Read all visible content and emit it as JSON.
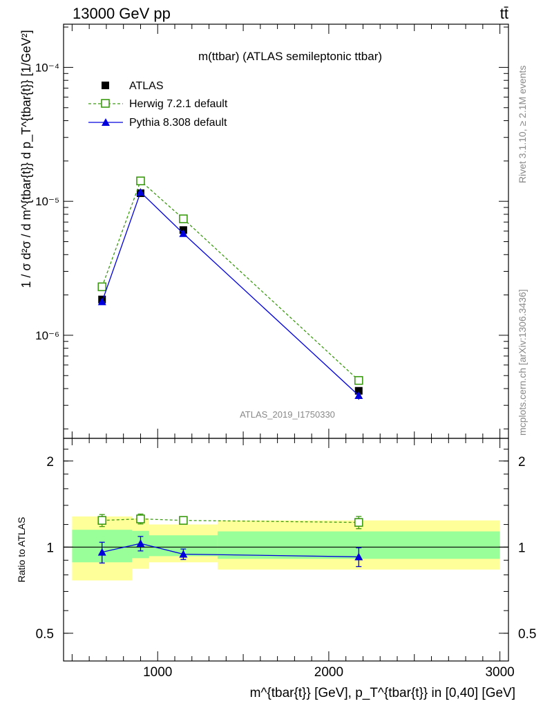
{
  "header": {
    "left": "13000 GeV pp",
    "right": "tt̄"
  },
  "side_labels": {
    "rivet": "Rivet 3.1.10, ≥ 2.1M events",
    "mcplots": "mcplots.cern.ch [arXiv:1306.3436]"
  },
  "colors": {
    "atlas": "#000000",
    "herwig": "#3a9a10",
    "pythia": "#0000dd",
    "band_inner": "#99ff99",
    "band_outer": "#ffff99"
  },
  "chart_data": [
    {
      "type": "scatter",
      "title": "m(ttbar) (ATLAS semileptonic ttbar)",
      "watermark": "ATLAS_2019_I1750330",
      "ylabel": "1 / σ d²σ / d m^{tbar{t}} d p_T^{tbar{t}} [1/GeV²]",
      "yscale": "log",
      "xlim": [
        450,
        3050
      ],
      "ylim": [
        1.7e-07,
        0.00021
      ],
      "y_ticks": [
        {
          "value": 1e-06,
          "label": "10⁻⁶"
        },
        {
          "value": 1e-05,
          "label": "10⁻⁵"
        },
        {
          "value": 0.0001,
          "label": "10⁻⁴"
        }
      ],
      "legend_position": "top-left",
      "series": [
        {
          "name": "ATLAS",
          "marker": "filled-square",
          "x": [
            675,
            900,
            1150,
            2175
          ],
          "y": [
            1.85e-06,
            1.15e-05,
            6.1e-06,
            3.85e-07
          ]
        },
        {
          "name": "Herwig 7.2.1 default",
          "marker": "open-square",
          "line": "dashed",
          "x": [
            675,
            900,
            1150,
            2175
          ],
          "y": [
            2.3e-06,
            1.42e-05,
            7.4e-06,
            4.6e-07
          ]
        },
        {
          "name": "Pythia 8.308 default",
          "marker": "filled-triangle",
          "line": "solid",
          "x": [
            675,
            900,
            1150,
            2175
          ],
          "y": [
            1.78e-06,
            1.17e-05,
            5.75e-06,
            3.55e-07
          ],
          "yerr": [
            9e-08,
            4e-07,
            2.2e-07,
            2.5e-08
          ]
        }
      ]
    },
    {
      "type": "scatter",
      "ylabel": "Ratio to ATLAS",
      "xlabel": "m^{tbar{t}} [GeV], p_T^{tbar{t}} in [0,40] [GeV]",
      "xlim": [
        450,
        3050
      ],
      "ylim": [
        0.4,
        2.4
      ],
      "x_ticks": [
        {
          "value": 1000,
          "label": "1000"
        },
        {
          "value": 2000,
          "label": "2000"
        },
        {
          "value": 3000,
          "label": "3000"
        }
      ],
      "y_ticks": [
        {
          "value": 0.5,
          "label": "0.5"
        },
        {
          "value": 1,
          "label": "1"
        },
        {
          "value": 2,
          "label": "2"
        }
      ],
      "reference": 1,
      "bands": [
        {
          "xlo": 500,
          "xhi": 850,
          "inner": [
            0.885,
            1.15
          ],
          "outer": [
            0.765,
            1.28
          ]
        },
        {
          "xlo": 850,
          "xhi": 950,
          "inner": [
            0.915,
            1.14
          ],
          "outer": [
            0.84,
            1.26
          ]
        },
        {
          "xlo": 950,
          "xhi": 1350,
          "inner": [
            0.93,
            1.1
          ],
          "outer": [
            0.885,
            1.2
          ]
        },
        {
          "xlo": 1350,
          "xhi": 3000,
          "inner": [
            0.91,
            1.135
          ],
          "outer": [
            0.835,
            1.24
          ]
        }
      ],
      "series": [
        {
          "name": "Herwig 7.2.1 default",
          "x": [
            675,
            900,
            1150,
            2175
          ],
          "y": [
            1.24,
            1.255,
            1.24,
            1.22
          ],
          "yerr": [
            0.06,
            0.05,
            0.03,
            0.06
          ]
        },
        {
          "name": "Pythia 8.308 default",
          "x": [
            675,
            900,
            1150,
            2175
          ],
          "y": [
            0.96,
            1.03,
            0.945,
            0.925
          ],
          "yerr": [
            0.08,
            0.06,
            0.04,
            0.07
          ]
        }
      ]
    }
  ]
}
